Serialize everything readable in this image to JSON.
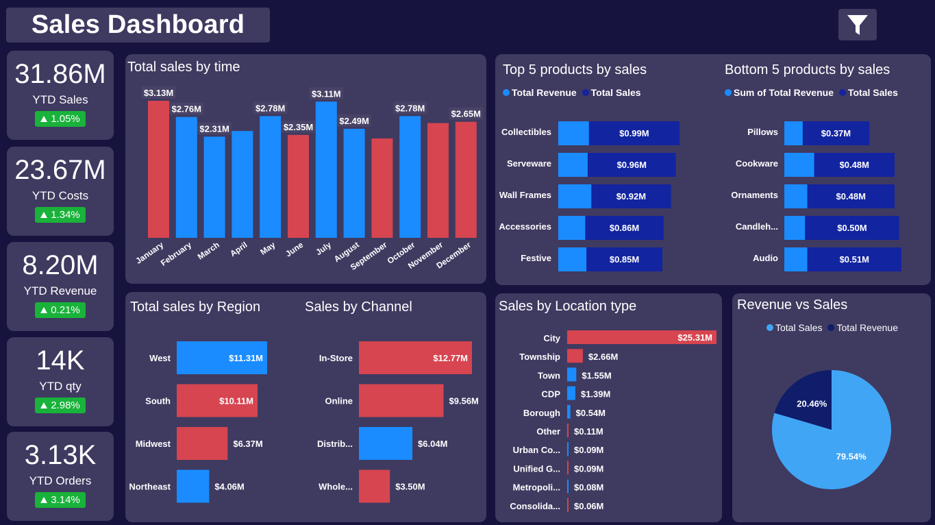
{
  "header": {
    "title": "Sales Dashboard"
  },
  "kpis": [
    {
      "value": "31.86M",
      "label": "YTD Sales",
      "change": "1.05%"
    },
    {
      "value": "23.67M",
      "label": "YTD Costs",
      "change": "1.34%"
    },
    {
      "value": "8.20M",
      "label": "YTD Revenue",
      "change": "0.21%"
    },
    {
      "value": "14K",
      "label": "YTD qty",
      "change": "2.98%"
    },
    {
      "value": "3.13K",
      "label": "YTD Orders",
      "change": "3.14%"
    }
  ],
  "colors": {
    "blue": "#1a8cff",
    "red": "#d64550",
    "navy": "#1224a0",
    "light_blue": "#41a5f5",
    "pie_navy": "#0f1d6b",
    "green": "#19b23a"
  },
  "chart_data": [
    {
      "id": "time",
      "type": "bar",
      "title": "Total sales by time",
      "categories": [
        "January",
        "February",
        "March",
        "April",
        "May",
        "June",
        "July",
        "August",
        "September",
        "October",
        "November",
        "December"
      ],
      "values": [
        3.13,
        2.76,
        2.31,
        2.44,
        2.78,
        2.35,
        3.11,
        2.49,
        2.27,
        2.78,
        2.62,
        2.65
      ],
      "data_labels": [
        "$3.13M",
        "$2.76M",
        "$2.31M",
        "",
        "$2.78M",
        "$2.35M",
        "$3.11M",
        "$2.49M",
        "",
        "$2.78M",
        "",
        "$2.65M"
      ],
      "bar_colors": [
        "red",
        "blue",
        "blue",
        "blue",
        "blue",
        "red",
        "blue",
        "blue",
        "red",
        "blue",
        "red",
        "red"
      ]
    },
    {
      "id": "top5",
      "type": "bar",
      "title": "Top 5 products by sales",
      "legend": [
        "Total Revenue",
        "Total Sales"
      ],
      "categories": [
        "Collectibles",
        "Serveware",
        "Wall Frames",
        "Accessories",
        "Festive"
      ],
      "revenue": [
        0.25,
        0.24,
        0.27,
        0.22,
        0.23
      ],
      "sales": [
        0.99,
        0.96,
        0.92,
        0.86,
        0.85
      ],
      "labels": [
        "$0.99M",
        "$0.96M",
        "$0.92M",
        "$0.86M",
        "$0.85M"
      ]
    },
    {
      "id": "bottom5",
      "type": "bar",
      "title": "Bottom 5 products by sales",
      "legend": [
        "Sum of Total Revenue",
        "Total Sales"
      ],
      "categories": [
        "Pillows",
        "Cookware",
        "Ornaments",
        "Candleh...",
        "Audio"
      ],
      "revenue": [
        0.08,
        0.13,
        0.1,
        0.09,
        0.1
      ],
      "sales": [
        0.37,
        0.48,
        0.48,
        0.5,
        0.51
      ],
      "labels": [
        "$0.37M",
        "$0.48M",
        "$0.48M",
        "$0.50M",
        "$0.51M"
      ]
    },
    {
      "id": "region",
      "type": "bar",
      "title": "Total sales by Region",
      "categories": [
        "West",
        "South",
        "Midwest",
        "Northeast"
      ],
      "values": [
        11.31,
        10.11,
        6.37,
        4.06
      ],
      "labels": [
        "$11.31M",
        "$10.11M",
        "$6.37M",
        "$4.06M"
      ],
      "bar_colors": [
        "blue",
        "red",
        "red",
        "blue"
      ]
    },
    {
      "id": "channel",
      "type": "bar",
      "title": "Sales by Channel",
      "categories": [
        "In-Store",
        "Online",
        "Distrib...",
        "Whole..."
      ],
      "values": [
        12.77,
        9.56,
        6.04,
        3.5
      ],
      "labels": [
        "$12.77M",
        "$9.56M",
        "$6.04M",
        "$3.50M"
      ],
      "bar_colors": [
        "red",
        "red",
        "blue",
        "red"
      ]
    },
    {
      "id": "location",
      "type": "bar",
      "title": "Sales by Location type",
      "categories": [
        "City",
        "Township",
        "Town",
        "CDP",
        "Borough",
        "Other",
        "Urban Co...",
        "Unified G...",
        "Metropoli...",
        "Consolida..."
      ],
      "values": [
        25.31,
        2.66,
        1.55,
        1.39,
        0.54,
        0.11,
        0.09,
        0.09,
        0.08,
        0.06
      ],
      "labels": [
        "$25.31M",
        "$2.66M",
        "$1.55M",
        "$1.39M",
        "$0.54M",
        "$0.11M",
        "$0.09M",
        "$0.09M",
        "$0.08M",
        "$0.06M"
      ],
      "bar_colors": [
        "red",
        "red",
        "blue",
        "blue",
        "blue",
        "red",
        "blue",
        "red",
        "blue",
        "red"
      ]
    },
    {
      "id": "pie",
      "type": "pie",
      "title": "Revenue vs Sales",
      "legend": [
        "Total Sales",
        "Total Revenue"
      ],
      "values": [
        79.54,
        20.46
      ],
      "labels": [
        "79.54%",
        "20.46%"
      ]
    }
  ]
}
